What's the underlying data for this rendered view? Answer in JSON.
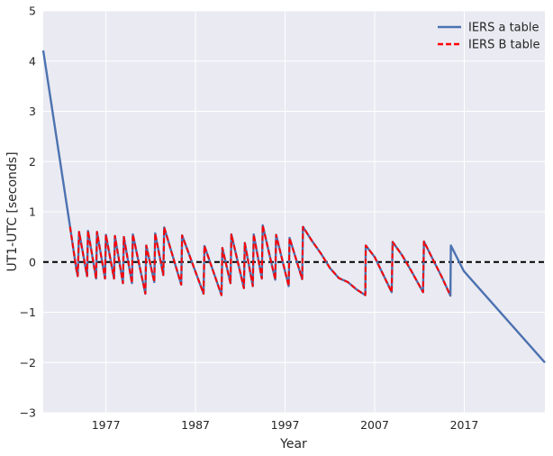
{
  "chart_data": {
    "type": "line",
    "xlabel": "Year",
    "ylabel": "UT1-UTC [seconds]",
    "xlim": [
      1970,
      2026
    ],
    "ylim": [
      -3,
      5
    ],
    "xticks": [
      1977,
      1987,
      1997,
      2007,
      2017
    ],
    "yticks": [
      -3,
      -2,
      -1,
      0,
      1,
      2,
      3,
      4,
      5
    ],
    "grid": true,
    "background": "#eaeaf2",
    "legend_position": "top-right",
    "reference_line": {
      "y": 0,
      "style": "dashed",
      "color": "#000000"
    },
    "series": [
      {
        "name": "IERS a table",
        "color": "#4c72b0",
        "style": "solid",
        "points": [
          [
            1970.0,
            4.21
          ],
          [
            1973.0,
            0.7
          ],
          [
            1973.7,
            -0.15
          ],
          [
            1973.85,
            -0.28
          ],
          [
            1974.0,
            0.6
          ],
          [
            1974.9,
            -0.28
          ],
          [
            1975.0,
            0.62
          ],
          [
            1975.9,
            -0.33
          ],
          [
            1976.0,
            0.6
          ],
          [
            1976.9,
            -0.33
          ],
          [
            1977.0,
            0.54
          ],
          [
            1977.9,
            -0.33
          ],
          [
            1978.0,
            0.52
          ],
          [
            1978.9,
            -0.42
          ],
          [
            1979.0,
            0.5
          ],
          [
            1979.9,
            -0.42
          ],
          [
            1980.0,
            0.55
          ],
          [
            1981.4,
            -0.63
          ],
          [
            1981.5,
            0.33
          ],
          [
            1982.4,
            -0.4
          ],
          [
            1982.5,
            0.57
          ],
          [
            1983.4,
            -0.26
          ],
          [
            1983.5,
            0.69
          ],
          [
            1985.4,
            -0.45
          ],
          [
            1985.5,
            0.53
          ],
          [
            1987.9,
            -0.63
          ],
          [
            1988.0,
            0.32
          ],
          [
            1989.9,
            -0.66
          ],
          [
            1990.0,
            0.28
          ],
          [
            1990.9,
            -0.42
          ],
          [
            1991.0,
            0.55
          ],
          [
            1992.4,
            -0.52
          ],
          [
            1992.5,
            0.38
          ],
          [
            1993.4,
            -0.48
          ],
          [
            1993.5,
            0.55
          ],
          [
            1994.4,
            -0.33
          ],
          [
            1994.5,
            0.73
          ],
          [
            1995.9,
            -0.35
          ],
          [
            1996.0,
            0.54
          ],
          [
            1997.4,
            -0.48
          ],
          [
            1997.5,
            0.48
          ],
          [
            1998.9,
            -0.34
          ],
          [
            1999.0,
            0.7
          ],
          [
            2000.0,
            0.42
          ],
          [
            2001.0,
            0.17
          ],
          [
            2002.0,
            -0.12
          ],
          [
            2003.0,
            -0.32
          ],
          [
            2004.0,
            -0.4
          ],
          [
            2005.0,
            -0.55
          ],
          [
            2005.95,
            -0.66
          ],
          [
            2006.0,
            0.33
          ],
          [
            2007.0,
            0.1
          ],
          [
            2008.9,
            -0.6
          ],
          [
            2009.0,
            0.4
          ],
          [
            2010.0,
            0.15
          ],
          [
            2011.0,
            -0.15
          ],
          [
            2012.4,
            -0.6
          ],
          [
            2012.5,
            0.41
          ],
          [
            2013.5,
            0.05
          ],
          [
            2014.5,
            -0.3
          ],
          [
            2015.45,
            -0.67
          ],
          [
            2015.5,
            0.33
          ],
          [
            2016.95,
            -0.18
          ],
          [
            2026.0,
            -2.0
          ]
        ]
      },
      {
        "name": "IERS B table",
        "color": "#ff0000",
        "style": "dashed",
        "points": [
          [
            1973.0,
            0.7
          ],
          [
            1973.7,
            -0.15
          ],
          [
            1973.85,
            -0.28
          ],
          [
            1974.0,
            0.6
          ],
          [
            1974.9,
            -0.28
          ],
          [
            1975.0,
            0.62
          ],
          [
            1975.9,
            -0.33
          ],
          [
            1976.0,
            0.6
          ],
          [
            1976.9,
            -0.33
          ],
          [
            1977.0,
            0.54
          ],
          [
            1977.9,
            -0.33
          ],
          [
            1978.0,
            0.52
          ],
          [
            1978.9,
            -0.42
          ],
          [
            1979.0,
            0.5
          ],
          [
            1979.9,
            -0.42
          ],
          [
            1980.0,
            0.55
          ],
          [
            1981.4,
            -0.63
          ],
          [
            1981.5,
            0.33
          ],
          [
            1982.4,
            -0.4
          ],
          [
            1982.5,
            0.57
          ],
          [
            1983.4,
            -0.26
          ],
          [
            1983.5,
            0.69
          ],
          [
            1985.4,
            -0.45
          ],
          [
            1985.5,
            0.53
          ],
          [
            1987.9,
            -0.63
          ],
          [
            1988.0,
            0.32
          ],
          [
            1989.9,
            -0.66
          ],
          [
            1990.0,
            0.28
          ],
          [
            1990.9,
            -0.42
          ],
          [
            1991.0,
            0.55
          ],
          [
            1992.4,
            -0.52
          ],
          [
            1992.5,
            0.38
          ],
          [
            1993.4,
            -0.48
          ],
          [
            1993.5,
            0.55
          ],
          [
            1994.4,
            -0.33
          ],
          [
            1994.5,
            0.73
          ],
          [
            1995.9,
            -0.35
          ],
          [
            1996.0,
            0.54
          ],
          [
            1997.4,
            -0.48
          ],
          [
            1997.5,
            0.48
          ],
          [
            1998.9,
            -0.34
          ],
          [
            1999.0,
            0.7
          ],
          [
            2000.0,
            0.42
          ],
          [
            2001.0,
            0.17
          ],
          [
            2002.0,
            -0.12
          ],
          [
            2003.0,
            -0.32
          ],
          [
            2004.0,
            -0.4
          ],
          [
            2005.0,
            -0.55
          ],
          [
            2005.95,
            -0.66
          ],
          [
            2006.0,
            0.33
          ],
          [
            2007.0,
            0.1
          ],
          [
            2008.9,
            -0.6
          ],
          [
            2009.0,
            0.4
          ],
          [
            2010.0,
            0.15
          ],
          [
            2011.0,
            -0.15
          ],
          [
            2012.4,
            -0.6
          ],
          [
            2012.5,
            0.41
          ],
          [
            2013.5,
            0.05
          ],
          [
            2014.5,
            -0.3
          ],
          [
            2015.45,
            -0.67
          ]
        ]
      }
    ]
  }
}
